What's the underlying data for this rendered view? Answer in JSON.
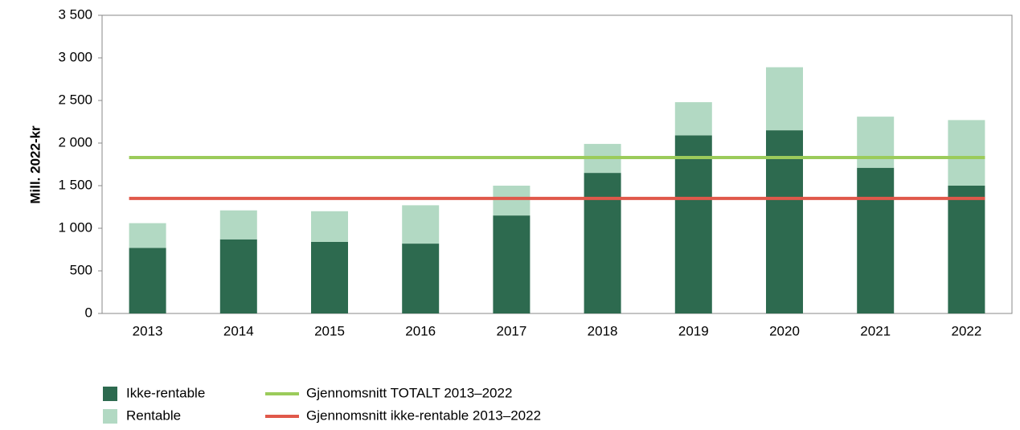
{
  "chart_data": {
    "type": "bar",
    "y_label": "Mill. 2022-kr",
    "categories": [
      "2013",
      "2014",
      "2015",
      "2016",
      "2017",
      "2018",
      "2019",
      "2020",
      "2021",
      "2022"
    ],
    "series": [
      {
        "name": "Ikke-rentable",
        "color": "#2d6a4f",
        "values": [
          770,
          870,
          840,
          820,
          1150,
          1650,
          2090,
          2150,
          1710,
          1500
        ]
      },
      {
        "name": "Rentable",
        "color": "#b2d9c3",
        "values": [
          290,
          340,
          360,
          450,
          350,
          340,
          390,
          740,
          600,
          770
        ]
      }
    ],
    "lines": [
      {
        "name": "Gjennomsnitt TOTALT 2013–2022",
        "color": "#9bcb5b",
        "value": 1830
      },
      {
        "name": "Gjennomsnitt ikke-rentable 2013–2022",
        "color": "#e0584a",
        "value": 1350
      }
    ],
    "ylim": [
      0,
      3500
    ],
    "yticks": [
      0,
      500,
      {
        "value": 1000,
        "label": "1 000"
      },
      {
        "value": 1500,
        "label": "1 500"
      },
      {
        "value": 2000,
        "label": "2 000"
      },
      {
        "value": 2500,
        "label": "2 500"
      },
      {
        "value": 3000,
        "label": "3 000"
      },
      {
        "value": 3500,
        "label": "3 500"
      }
    ]
  }
}
